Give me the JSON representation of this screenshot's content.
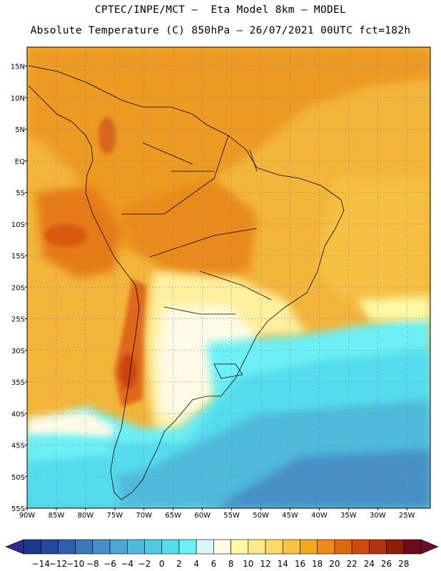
{
  "header": {
    "title_line1": "CPTEC/INPE/MCT –  Eta Model 8km – MODEL",
    "title_line2": "Absolute Temperature (C) 850hPa – 26/07/2021 00UTC fct=182h"
  },
  "axes": {
    "lat_labels": [
      "15N",
      "10N",
      "5N",
      "EQ",
      "5S",
      "10S",
      "15S",
      "20S",
      "25S",
      "30S",
      "35S",
      "40S",
      "45S",
      "50S",
      "55S"
    ],
    "lat_values": [
      15,
      10,
      5,
      0,
      -5,
      -10,
      -15,
      -20,
      -25,
      -30,
      -35,
      -40,
      -45,
      -50,
      -55
    ],
    "lon_labels": [
      "90W",
      "85W",
      "80W",
      "75W",
      "70W",
      "65W",
      "60W",
      "55W",
      "50W",
      "45W",
      "40W",
      "35W",
      "30W",
      "25W"
    ],
    "lon_values": [
      -90,
      -85,
      -80,
      -75,
      -70,
      -65,
      -60,
      -55,
      -50,
      -45,
      -40,
      -35,
      -30,
      -25
    ],
    "lat_range": [
      -55,
      18
    ],
    "lon_range": [
      -90,
      -21
    ],
    "grid": "dotted"
  },
  "colorbar": {
    "labels": [
      "-14",
      "-12",
      "-10",
      "-8",
      "-6",
      "-4",
      "-2",
      "0",
      "2",
      "4",
      "6",
      "8",
      "10",
      "12",
      "14",
      "16",
      "18",
      "20",
      "22",
      "24",
      "26",
      "28"
    ],
    "colors": [
      "#1d3a8a",
      "#25489a",
      "#2f5fa8",
      "#3a78b8",
      "#4690c6",
      "#4ea6d2",
      "#4fbadb",
      "#4fcbe3",
      "#55dcec",
      "#6cf0f5",
      "#d8f7f8",
      "#fffbe6",
      "#fff9a6",
      "#ffe98a",
      "#fdd86a",
      "#f8c242",
      "#f3a81e",
      "#ec8a1c",
      "#e06712",
      "#cf4a0e",
      "#b3340c",
      "#8e1e0c",
      "#6e0b1a"
    ],
    "under_color": "#2e2d8c",
    "over_color": "#6e0b2a"
  },
  "field_colors": {
    "ocean_north": "#f3b53a",
    "hot": "#ec8a1c",
    "hotter": "#e06712",
    "warm": "#f8c242",
    "pale": "#fff9a6",
    "cream": "#fffbe6",
    "cyan": "#6cf0f5",
    "lightblue": "#55dcec",
    "blue": "#4fbadb",
    "deepblue": "#4690c6"
  }
}
